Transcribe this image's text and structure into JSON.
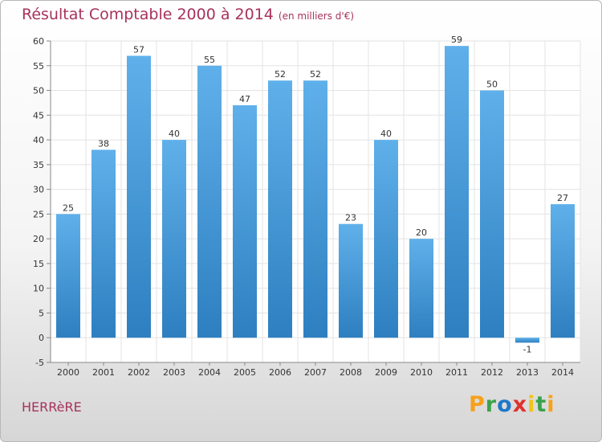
{
  "title": "Résultat Comptable 2000 à 2014",
  "subtitle": "(en milliers d'€)",
  "commune": "HERRèRE",
  "logo": {
    "letters": [
      "P",
      "r",
      "o",
      "x",
      "i",
      "t",
      "i"
    ],
    "colors": [
      "#f7a11a",
      "#3aa24a",
      "#1f78c8",
      "#e0322d",
      "#f0c419",
      "#3aa24a",
      "#f7a11a"
    ]
  },
  "colors": {
    "bar_light": "#5fb0ea",
    "bar_dark": "#2e7fc0",
    "title": "#a8315c",
    "grid": "#e3e3e3"
  },
  "chart_data": {
    "type": "bar",
    "title": "Résultat Comptable 2000 à 2014",
    "subtitle": "(en milliers d'€)",
    "categories": [
      "2000",
      "2001",
      "2002",
      "2003",
      "2004",
      "2005",
      "2006",
      "2007",
      "2008",
      "2009",
      "2010",
      "2011",
      "2012",
      "2013",
      "2014"
    ],
    "values": [
      25,
      38,
      57,
      40,
      55,
      47,
      52,
      52,
      23,
      40,
      20,
      59,
      50,
      -1,
      27
    ],
    "value_labels": [
      "25",
      "38",
      "57",
      "40",
      "55",
      "47",
      "52",
      "52",
      "23",
      "40",
      "20",
      "59",
      "50",
      "-1",
      "27"
    ],
    "ylim": [
      -5,
      60
    ],
    "yticks": [
      -5,
      0,
      5,
      10,
      15,
      20,
      25,
      30,
      35,
      40,
      45,
      50,
      55,
      60
    ],
    "grid": true,
    "legend": "none"
  }
}
